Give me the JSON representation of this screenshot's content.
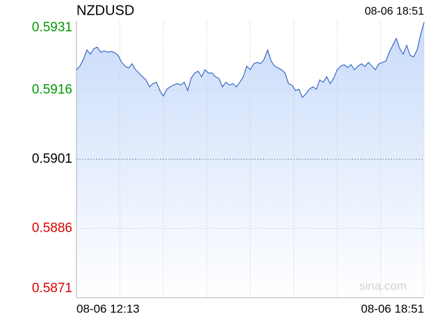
{
  "chart_data": {
    "type": "line",
    "title": "NZDUSD",
    "timestamp": "08-06 18:51",
    "watermark": "sina.com",
    "color": "#3a68c4",
    "fill_color": "#c9dbfa",
    "grid": true,
    "ylim": [
      0.5871,
      0.5931
    ],
    "yticks": [
      0.5931,
      0.5916,
      0.5901,
      0.5886,
      0.5871
    ],
    "ytick_colors": [
      "#009900",
      "#009900",
      "#000000",
      "#dd0000",
      "#dd0000"
    ],
    "categories": [
      "08-06 12:13",
      null,
      null,
      null,
      null,
      null,
      null,
      null,
      null,
      null,
      null,
      null,
      null,
      null,
      null,
      null,
      null,
      null,
      null,
      null,
      null,
      null,
      null,
      null,
      null,
      null,
      null,
      null,
      null,
      null,
      null,
      null,
      null,
      null,
      null,
      null,
      null,
      null,
      null,
      null,
      null,
      null,
      null,
      null,
      null,
      null,
      null,
      null,
      null,
      null,
      null,
      null,
      null,
      null,
      null,
      null,
      null,
      null,
      null,
      null,
      null,
      null,
      null,
      null,
      null,
      null,
      null,
      null,
      null,
      null,
      null,
      null,
      null,
      null,
      null,
      null,
      null,
      null,
      null,
      null,
      null,
      null,
      null,
      null,
      null,
      null,
      null,
      null,
      null,
      null,
      null,
      null,
      null,
      null,
      null,
      null,
      null,
      null,
      null,
      null,
      "08-06 18:51"
    ],
    "values": [
      0.59204,
      0.59212,
      0.59227,
      0.59247,
      0.59238,
      0.5925,
      0.59253,
      0.59242,
      0.59245,
      0.59242,
      0.59244,
      0.59241,
      0.59235,
      0.5922,
      0.59212,
      0.59208,
      0.59217,
      0.59204,
      0.59197,
      0.59189,
      0.59182,
      0.59167,
      0.59174,
      0.59177,
      0.59159,
      0.59147,
      0.59162,
      0.59167,
      0.59171,
      0.59174,
      0.59171,
      0.59177,
      0.59159,
      0.59186,
      0.59197,
      0.59201,
      0.59189,
      0.59204,
      0.59197,
      0.59197,
      0.59189,
      0.59185,
      0.59167,
      0.59177,
      0.59171,
      0.59174,
      0.59167,
      0.59177,
      0.59189,
      0.59212,
      0.59204,
      0.59217,
      0.5922,
      0.59217,
      0.59227,
      0.59247,
      0.59223,
      0.59212,
      0.59208,
      0.59204,
      0.59197,
      0.59174,
      0.59171,
      0.59159,
      0.59162,
      0.59144,
      0.59152,
      0.59162,
      0.59167,
      0.59162,
      0.59182,
      0.59177,
      0.59189,
      0.59174,
      0.59186,
      0.59204,
      0.59212,
      0.59215,
      0.59209,
      0.59215,
      0.59204,
      0.59212,
      0.59217,
      0.59211,
      0.5922,
      0.59212,
      0.59204,
      0.59217,
      0.5922,
      0.59223,
      0.59242,
      0.59257,
      0.59272,
      0.5925,
      0.59238,
      0.59257,
      0.59235,
      0.59232,
      0.59247,
      0.5928,
      0.59307
    ]
  }
}
